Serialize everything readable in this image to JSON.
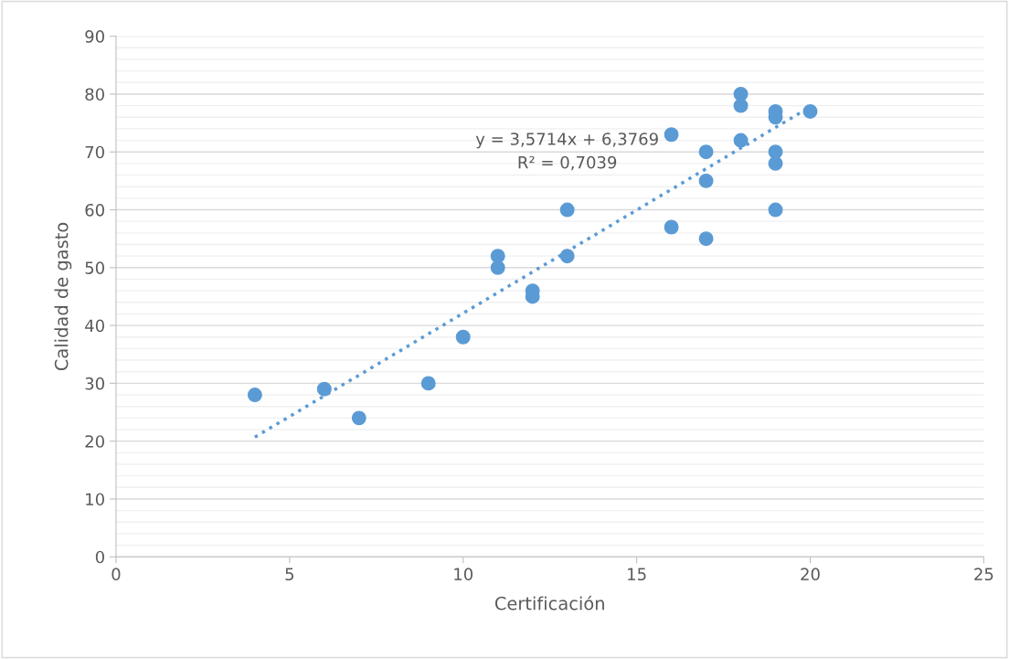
{
  "chart_data": {
    "type": "scatter",
    "xlabel": "Certificación",
    "ylabel": "Calidad de gasto",
    "xlim": [
      0,
      25
    ],
    "xticks": [
      0,
      5,
      10,
      15,
      20,
      25
    ],
    "ylim": [
      0,
      90
    ],
    "yticks": [
      0,
      10,
      20,
      30,
      40,
      50,
      60,
      70,
      80,
      90
    ],
    "grid": "y",
    "series": [
      {
        "marker": "circle",
        "color": "#5b9bd5",
        "x": [
          4,
          6,
          7,
          9,
          10,
          11,
          11,
          12,
          12,
          13,
          13,
          16,
          16,
          17,
          17,
          17,
          18,
          18,
          18,
          19,
          19,
          19,
          19,
          19,
          20
        ],
        "values": [
          28,
          29,
          24,
          30,
          38,
          52,
          50,
          46,
          45,
          60,
          52,
          73,
          57,
          70,
          65,
          55,
          80,
          78,
          72,
          77,
          76,
          70,
          68,
          60,
          77
        ]
      },
      {
        "type": "line",
        "marker": "none",
        "color": "#5b9bd5",
        "line_style": "dotted",
        "x": [
          4,
          20
        ],
        "values": [
          20.7,
          77.8
        ]
      }
    ],
    "annotations": [
      "y = 3,5714x + 6,3769",
      "R² = 0,7039"
    ]
  }
}
